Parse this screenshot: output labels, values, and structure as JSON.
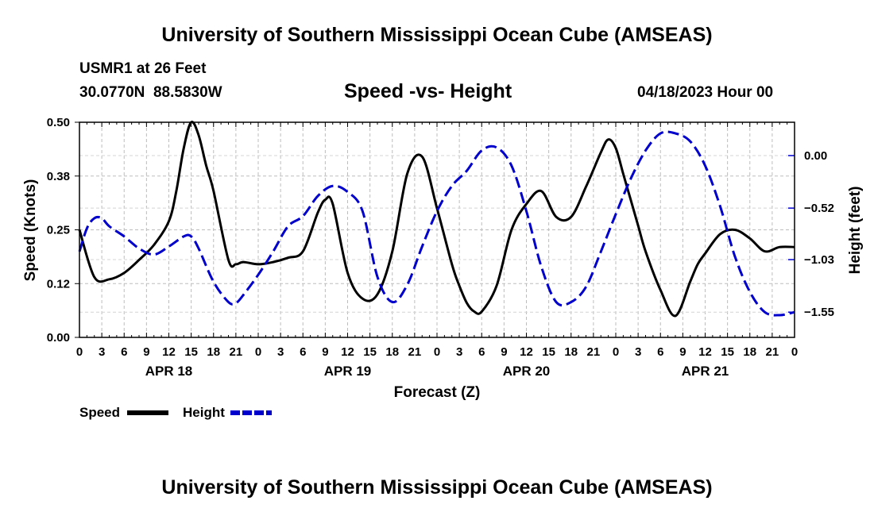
{
  "header": {
    "title": "University of Southern Mississippi Ocean Cube (AMSEAS)",
    "station": "USMR1 at 26 Feet",
    "coords": "30.0770N  88.5830W",
    "subtitle": "Speed -vs- Height",
    "run": "04/18/2023 Hour 00"
  },
  "footer": {
    "title": "University of Southern Mississippi Ocean Cube (AMSEAS)"
  },
  "chart_data": {
    "type": "line",
    "title": "Speed -vs- Height",
    "xlabel": "Forecast (Z)",
    "ylabel_left": "Speed (Knots)",
    "ylabel_right": "Height (feet)",
    "x_hours_range": [
      0,
      96
    ],
    "x_tick_labels": [
      "0",
      "3",
      "6",
      "9",
      "12",
      "15",
      "18",
      "21",
      "0",
      "3",
      "6",
      "9",
      "12",
      "15",
      "18",
      "21",
      "0",
      "3",
      "6",
      "9",
      "12",
      "15",
      "18",
      "21",
      "0",
      "3",
      "6",
      "9",
      "12",
      "15",
      "18",
      "21",
      "0"
    ],
    "day_labels": [
      {
        "hour": 12,
        "label": "APR 18"
      },
      {
        "hour": 36,
        "label": "APR 19"
      },
      {
        "hour": 60,
        "label": "APR 20"
      },
      {
        "hour": 84,
        "label": "APR 21"
      }
    ],
    "left_axis": {
      "ylim": [
        0,
        0.5
      ],
      "ticks": [
        "0.00",
        "0.12",
        "0.25",
        "0.38",
        "0.50"
      ]
    },
    "right_axis": {
      "ylim": [
        -1.8,
        0.33
      ],
      "ticks": [
        {
          "value": 0.0,
          "label": "0.00"
        },
        {
          "value": -0.52,
          "label": "−0.52"
        },
        {
          "value": -1.03,
          "label": "−1.03"
        },
        {
          "value": -1.55,
          "label": "−1.55"
        }
      ]
    },
    "grid": true,
    "legend": [
      "Speed",
      "Height"
    ],
    "series": [
      {
        "name": "Speed",
        "axis": "left",
        "color": "#000000",
        "dash": "solid",
        "x": [
          0,
          2,
          4,
          6,
          8,
          10,
          12,
          13,
          14,
          15,
          16,
          17,
          18,
          20,
          21,
          22,
          24,
          26,
          28,
          30,
          32,
          33,
          34,
          36,
          38,
          40,
          42,
          44,
          46,
          48,
          50,
          51,
          52,
          53,
          54,
          56,
          58,
          60,
          62,
          64,
          66,
          68,
          70,
          71,
          72,
          73,
          74,
          75,
          76,
          78,
          80,
          82,
          83,
          84,
          86,
          88,
          90,
          92,
          94,
          96
        ],
        "values": [
          0.25,
          0.14,
          0.135,
          0.15,
          0.18,
          0.215,
          0.27,
          0.34,
          0.44,
          0.5,
          0.47,
          0.4,
          0.34,
          0.18,
          0.17,
          0.175,
          0.17,
          0.175,
          0.185,
          0.2,
          0.29,
          0.32,
          0.31,
          0.15,
          0.09,
          0.1,
          0.2,
          0.38,
          0.42,
          0.3,
          0.17,
          0.12,
          0.08,
          0.06,
          0.06,
          0.12,
          0.25,
          0.31,
          0.34,
          0.28,
          0.28,
          0.35,
          0.43,
          0.46,
          0.44,
          0.38,
          0.32,
          0.26,
          0.2,
          0.11,
          0.05,
          0.13,
          0.17,
          0.195,
          0.24,
          0.25,
          0.23,
          0.2,
          0.21,
          0.21
        ]
      },
      {
        "name": "Height",
        "axis": "right",
        "color": "#0000cc",
        "dash": "dashed",
        "x": [
          0,
          1,
          2,
          3,
          4,
          6,
          8,
          10,
          12,
          14,
          15,
          16,
          18,
          20,
          21,
          22,
          24,
          26,
          28,
          30,
          32,
          34,
          36,
          38,
          40,
          42,
          44,
          46,
          48,
          50,
          52,
          54,
          56,
          58,
          60,
          62,
          64,
          66,
          68,
          70,
          72,
          74,
          76,
          78,
          80,
          82,
          84,
          86,
          88,
          90,
          92,
          94,
          96
        ],
        "values": [
          -0.95,
          -0.72,
          -0.62,
          -0.62,
          -0.7,
          -0.8,
          -0.92,
          -0.98,
          -0.9,
          -0.8,
          -0.8,
          -0.92,
          -1.25,
          -1.45,
          -1.46,
          -1.38,
          -1.18,
          -0.95,
          -0.7,
          -0.6,
          -0.4,
          -0.3,
          -0.36,
          -0.55,
          -1.2,
          -1.45,
          -1.28,
          -0.9,
          -0.55,
          -0.3,
          -0.15,
          0.05,
          0.08,
          -0.1,
          -0.55,
          -1.1,
          -1.45,
          -1.45,
          -1.3,
          -0.95,
          -0.58,
          -0.23,
          0.05,
          0.22,
          0.22,
          0.14,
          -0.1,
          -0.5,
          -1.0,
          -1.35,
          -1.55,
          -1.58,
          -1.55
        ]
      }
    ]
  }
}
